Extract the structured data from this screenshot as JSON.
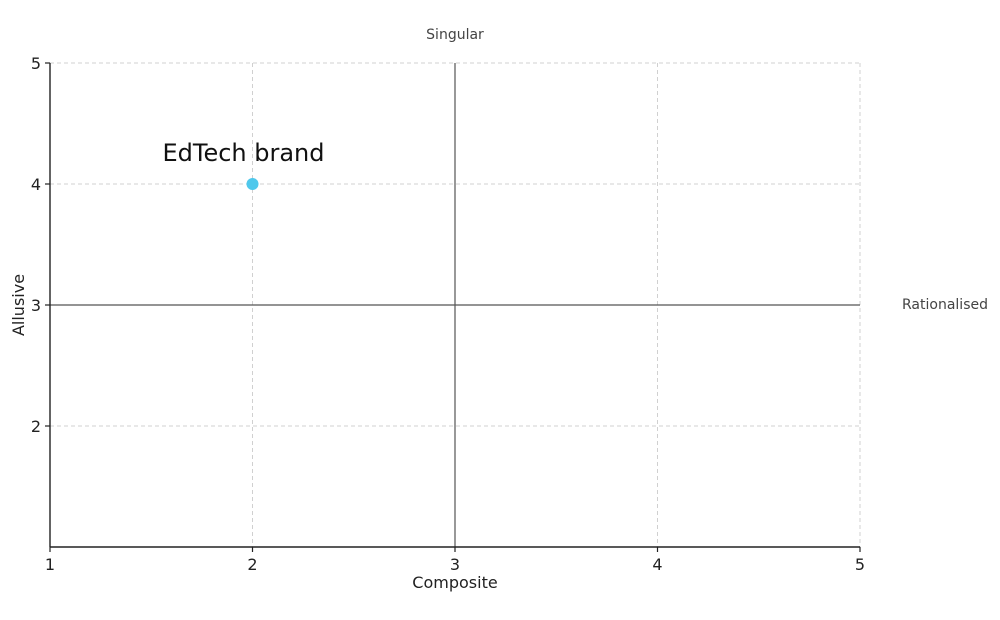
{
  "chart_data": {
    "type": "scatter",
    "title": "",
    "xlabel": "Composite",
    "ylabel": "Allusive",
    "xlim": [
      1,
      5
    ],
    "ylim": [
      1,
      5
    ],
    "x_ticks": [
      1,
      2,
      3,
      4,
      5
    ],
    "y_ticks": [
      2,
      3,
      4,
      5
    ],
    "grid": true,
    "reference_lines": {
      "x": 3,
      "y": 3
    },
    "quadrant_labels": {
      "top": "Singular",
      "right": "Rationalised"
    },
    "points": [
      {
        "label": "EdTech brand",
        "x": 2,
        "y": 4,
        "color": "#4fc8ec"
      }
    ],
    "colors": {
      "grid": "#d0d0d0",
      "axis": "#222222",
      "reference": "#555555"
    }
  }
}
